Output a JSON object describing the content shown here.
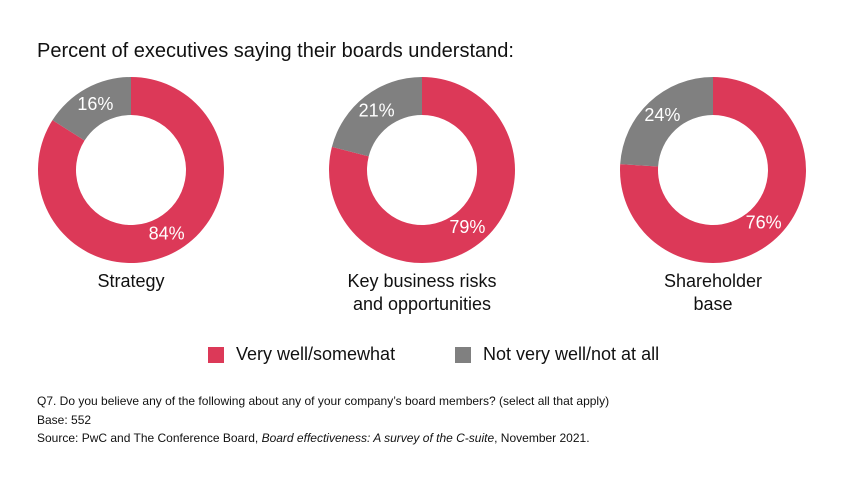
{
  "header": {
    "title": "Percent of executives saying their boards understand:"
  },
  "chart_data": [
    {
      "type": "pie",
      "title": "Strategy",
      "categories": [
        "Very well/somewhat",
        "Not very well/not at all"
      ],
      "values": [
        84,
        16
      ],
      "value_labels": [
        "84%",
        "16%"
      ],
      "colors": [
        "#dc3958",
        "#808080"
      ]
    },
    {
      "type": "pie",
      "title": "Key business risks and opportunities",
      "categories": [
        "Very well/somewhat",
        "Not very well/not at all"
      ],
      "values": [
        79,
        21
      ],
      "value_labels": [
        "79%",
        "21%"
      ],
      "colors": [
        "#dc3958",
        "#808080"
      ]
    },
    {
      "type": "pie",
      "title": "Shareholder base",
      "categories": [
        "Very well/somewhat",
        "Not very well/not at all"
      ],
      "values": [
        76,
        24
      ],
      "value_labels": [
        "76%",
        "24%"
      ],
      "colors": [
        "#dc3958",
        "#808080"
      ]
    }
  ],
  "notes": {
    "question": "Q7. Do you believe any of the following about any of your company’s board members? (select all that apply)",
    "base": "Base: 552",
    "source": [
      "Source: PwC and The Conference Board, ",
      "Board effectiveness: A survey of the C-suite",
      ", November 2021."
    ]
  }
}
